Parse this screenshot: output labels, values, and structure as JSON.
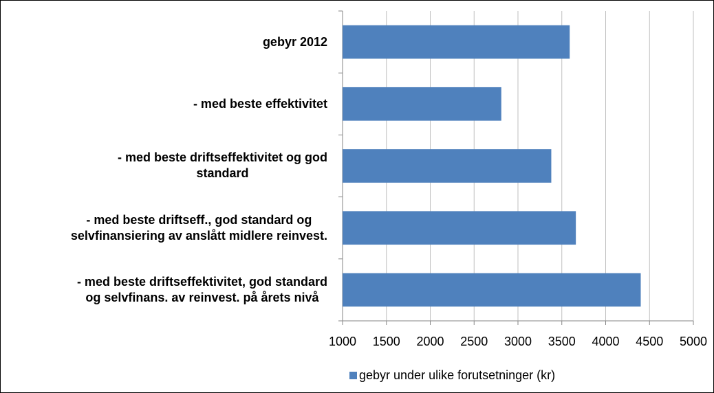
{
  "chart_data": {
    "type": "bar",
    "orientation": "horizontal",
    "categories": [
      "gebyr 2012",
      "- med beste effektivitet",
      "-  med beste driftseffektivitet og god\nstandard",
      "- med beste driftseff., god standard og\nselvfinansiering av anslått midlere reinvest.",
      "- med beste driftseffektivitet, god standard\nog selvfinans. av reinvest. på årets nivå"
    ],
    "series": [
      {
        "name": "gebyr under ulike forutsetninger (kr)",
        "color": "#4f81bd",
        "values": [
          3590,
          2810,
          3380,
          3660,
          4400
        ]
      }
    ],
    "xlim": [
      1000,
      5000
    ],
    "xticks": [
      1000,
      1500,
      2000,
      2500,
      3000,
      3500,
      4000,
      4500,
      5000
    ],
    "grid": true,
    "legend": "bottom"
  }
}
